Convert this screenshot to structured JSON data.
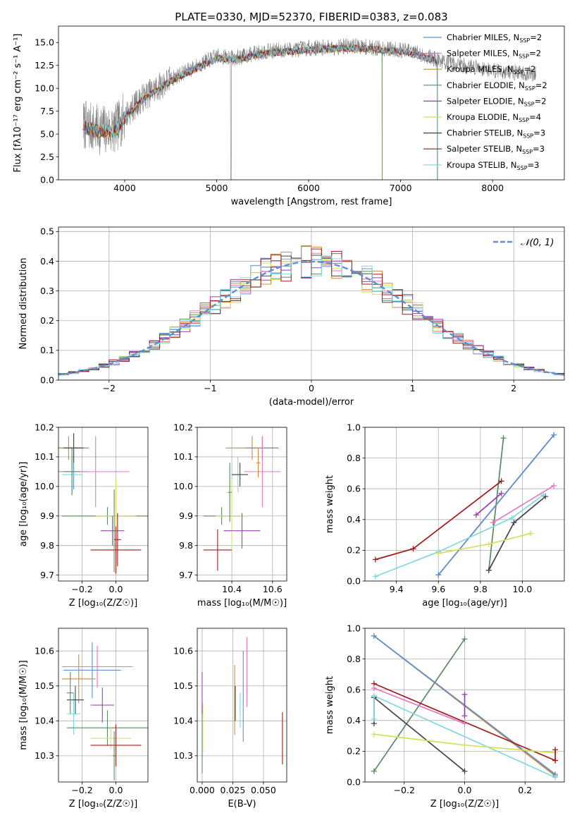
{
  "chart_data": [
    {
      "id": "spectrum",
      "type": "line",
      "title": "PLATE=0330, MJD=52370, FIBERID=0383, z=0.083",
      "xlabel": "wavelength [Angstrom, rest frame]",
      "ylabel": "Flux [fλ10⁻¹⁷ erg cm⁻² s⁻¹ A⁻¹]",
      "xlim": [
        3280,
        8780
      ],
      "ylim": [
        0,
        16.8
      ],
      "xticks": [
        4000,
        5000,
        6000,
        7000,
        8000
      ],
      "yticks": [
        0.0,
        2.5,
        5.0,
        7.5,
        10.0,
        12.5,
        15.0
      ],
      "grid": false,
      "legend_position": "right",
      "data_color": "#7f7f7f",
      "data_range": [
        3550,
        8470
      ],
      "legend": [
        {
          "label": "Chabrier MILES, N",
          "sub": "SSP",
          "suffix": "=2",
          "color": "#5b8fd6"
        },
        {
          "label": "Salpeter MILES, N",
          "sub": "SSP",
          "suffix": "=2",
          "color": "#e377c2"
        },
        {
          "label": "Kroupa MILES, N",
          "sub": "SSP",
          "suffix": "=2",
          "color": "#d08a3a"
        },
        {
          "label": "Chabrier ELODIE, N",
          "sub": "SSP",
          "suffix": "=2",
          "color": "#5a8a5f"
        },
        {
          "label": "Salpeter ELODIE, N",
          "sub": "SSP",
          "suffix": "=2",
          "color": "#9b3fb0"
        },
        {
          "label": "Kroupa ELODIE, N",
          "sub": "SSP",
          "suffix": "=4",
          "color": "#d4e157"
        },
        {
          "label": "Chabrier STELIB, N",
          "sub": "SSP",
          "suffix": "=3",
          "color": "#444444"
        },
        {
          "label": "Salpeter STELIB, N",
          "sub": "SSP",
          "suffix": "=3",
          "color": "#a01a1a"
        },
        {
          "label": "Kroupa STELIB, N",
          "sub": "SSP",
          "suffix": "=3",
          "color": "#80d8df"
        }
      ],
      "continuum": [
        [
          3550,
          6.0
        ],
        [
          3700,
          5.5
        ],
        [
          3900,
          5.5
        ],
        [
          4000,
          7.0
        ],
        [
          4200,
          9.0
        ],
        [
          4500,
          11.0
        ],
        [
          4800,
          12.5
        ],
        [
          5000,
          13.5
        ],
        [
          5200,
          13.3
        ],
        [
          5500,
          14.0
        ],
        [
          6000,
          14.4
        ],
        [
          6500,
          14.6
        ],
        [
          7000,
          14.2
        ],
        [
          7200,
          13.8
        ],
        [
          7500,
          12.8
        ],
        [
          8000,
          12.0
        ],
        [
          8470,
          11.5
        ]
      ],
      "model_range": [
        3500,
        7400
      ],
      "model_drops": [
        [
          6800,
          7400
        ],
        [
          7400,
          7400
        ]
      ]
    },
    {
      "id": "residuals",
      "type": "histogram",
      "xlabel": "(data-model)/error",
      "ylabel": "Normed distribution",
      "xlim": [
        -2.5,
        2.5
      ],
      "ylim": [
        0,
        0.515
      ],
      "xticks": [
        -2,
        -1,
        0,
        1,
        2
      ],
      "yticks": [
        0.0,
        0.1,
        0.2,
        0.3,
        0.4,
        0.5
      ],
      "grid": true,
      "legend_position": "top-right",
      "legend": [
        {
          "label": "𝒩(0, 1)",
          "color": "#5b8fd6",
          "dashed": true
        }
      ],
      "bins": {
        "start": -2.6,
        "width": 0.1
      }
    },
    {
      "id": "z-age",
      "type": "errorbar",
      "xlabel": "Z [log₁₀(Z/Z☉)]",
      "ylabel": "age  [log₁₀(age/yr)]",
      "xlim": [
        -0.34,
        0.19
      ],
      "ylim": [
        9.68,
        10.2
      ],
      "xticks": [
        -0.2,
        0.0
      ],
      "yticks": [
        9.7,
        9.8,
        9.9,
        10.0,
        10.1,
        10.2
      ],
      "grid": true,
      "points": [
        {
          "x": -0.25,
          "y": 10.05,
          "xerr": 0.09,
          "yerr": 0.06,
          "color": "#5b8fd6"
        },
        {
          "x": -0.25,
          "y": 10.13,
          "xerr": 0.09,
          "yerr": 0.04,
          "color": "#5b8fd6"
        },
        {
          "x": -0.28,
          "y": 10.13,
          "xerr": 0.06,
          "yerr": 0.04,
          "color": "#d08a3a"
        },
        {
          "x": -0.12,
          "y": 10.05,
          "xerr": 0.2,
          "yerr": 0.12,
          "color": "#e377c2"
        },
        {
          "x": -0.26,
          "y": 10.04,
          "xerr": 0.06,
          "yerr": 0.06,
          "color": "#80d8df"
        },
        {
          "x": -0.26,
          "y": 10.05,
          "xerr": 0.05,
          "yerr": 0.08,
          "color": "#5a8a5f"
        },
        {
          "x": -0.25,
          "y": 10.13,
          "xerr": 0.06,
          "yerr": 0.05,
          "color": "#444444"
        },
        {
          "x": -0.05,
          "y": 9.9,
          "xerr": 0.27,
          "yerr": 0.03,
          "color": "#5a8a5f"
        },
        {
          "x": 0.0,
          "y": 9.9,
          "xerr": 0.12,
          "yerr": 0.12,
          "color": "#d4e157"
        },
        {
          "x": -0.02,
          "y": 9.85,
          "xerr": 0.07,
          "yerr": 0.05,
          "color": "#9b3fb0"
        },
        {
          "x": 0.0,
          "y": 9.785,
          "xerr": 0.15,
          "yerr": 0.08,
          "color": "#a01a1a"
        },
        {
          "x": 0.01,
          "y": 9.82,
          "xerr": 0.02,
          "yerr": 0.09,
          "color": "#a01a1a"
        },
        {
          "x": -0.01,
          "y": 9.85,
          "xerr": 0.02,
          "yerr": 0.14,
          "color": "#5a8a5f"
        }
      ]
    },
    {
      "id": "mass-age",
      "type": "errorbar",
      "xlabel": "mass [log₁₀(M/M☉)]",
      "xlim": [
        10.23,
        10.67
      ],
      "ylim": [
        9.68,
        10.2
      ],
      "xticks": [
        10.4,
        10.6
      ],
      "yticks": [
        9.7,
        9.8,
        9.9,
        10.0,
        10.1,
        10.2
      ],
      "grid": true,
      "points": [
        {
          "x": 10.5,
          "y": 10.13,
          "xerr": 0.13,
          "yerr": 0.04,
          "color": "#d08a3a"
        },
        {
          "x": 10.55,
          "y": 10.13,
          "xerr": 0.08,
          "yerr": 0.04,
          "color": "#5b8fd6"
        },
        {
          "x": 10.55,
          "y": 10.05,
          "xerr": 0.09,
          "yerr": 0.12,
          "color": "#e377c2"
        },
        {
          "x": 10.43,
          "y": 10.04,
          "xerr": 0.03,
          "yerr": 0.06,
          "color": "#80d8df"
        },
        {
          "x": 10.44,
          "y": 10.04,
          "xerr": 0.04,
          "yerr": 0.04,
          "color": "#444444"
        },
        {
          "x": 10.35,
          "y": 9.9,
          "xerr": 0.09,
          "yerr": 0.03,
          "color": "#5a8a5f"
        },
        {
          "x": 10.4,
          "y": 9.9,
          "xerr": 0.08,
          "yerr": 0.12,
          "color": "#d4e157"
        },
        {
          "x": 10.45,
          "y": 9.85,
          "xerr": 0.09,
          "yerr": 0.06,
          "color": "#9b3fb0"
        },
        {
          "x": 10.33,
          "y": 9.785,
          "xerr": 0.07,
          "yerr": 0.07,
          "color": "#a01a1a"
        },
        {
          "x": 10.39,
          "y": 9.98,
          "xerr": 0.01,
          "yerr": 0.1,
          "color": "#5a8a5f"
        },
        {
          "x": 10.53,
          "y": 10.08,
          "xerr": 0.01,
          "yerr": 0.05,
          "color": "#d08a3a"
        }
      ]
    },
    {
      "id": "age-weight",
      "type": "line",
      "xlabel": "age  [log₁₀(age/yr)]",
      "ylabel": "mass weight",
      "xlim": [
        9.25,
        10.2
      ],
      "ylim": [
        0,
        1
      ],
      "xticks": [
        9.4,
        9.6,
        9.8,
        10.0
      ],
      "yticks": [
        0.0,
        0.2,
        0.4,
        0.6,
        0.8,
        1.0
      ],
      "grid": true,
      "series": [
        {
          "color": "#5a8a5f",
          "points": [
            [
              9.84,
              0.07
            ],
            [
              9.91,
              0.93
            ]
          ]
        },
        {
          "color": "#444444",
          "points": [
            [
              9.84,
              0.07
            ],
            [
              9.96,
              0.38
            ],
            [
              10.11,
              0.55
            ]
          ]
        },
        {
          "color": "#d08a3a",
          "points": [
            [
              9.6,
              0.04
            ],
            [
              10.15,
              0.95
            ]
          ]
        },
        {
          "color": "#5b8fd6",
          "points": [
            [
              9.6,
              0.04
            ],
            [
              10.15,
              0.95
            ]
          ]
        },
        {
          "color": "#a01a1a",
          "points": [
            [
              9.3,
              0.14
            ],
            [
              9.48,
              0.21
            ],
            [
              9.9,
              0.65
            ]
          ]
        },
        {
          "color": "#9b3fb0",
          "points": [
            [
              9.78,
              0.43
            ],
            [
              9.9,
              0.57
            ]
          ]
        },
        {
          "color": "#e377c2",
          "points": [
            [
              9.86,
              0.38
            ],
            [
              10.15,
              0.62
            ]
          ]
        },
        {
          "color": "#80d8df",
          "points": [
            [
              9.3,
              0.03
            ],
            [
              9.6,
              0.19
            ],
            [
              9.95,
              0.41
            ],
            [
              10.1,
              0.56
            ]
          ]
        },
        {
          "color": "#d4e157",
          "points": [
            [
              9.6,
              0.18
            ],
            [
              9.84,
              0.24
            ],
            [
              10.04,
              0.31
            ]
          ]
        }
      ]
    },
    {
      "id": "z-mass",
      "type": "errorbar",
      "xlabel": "Z [log₁₀(Z/Z☉)]",
      "ylabel": "mass [log₁₀(M/M☉)]",
      "xlim": [
        -0.34,
        0.19
      ],
      "ylim": [
        10.225,
        10.665
      ],
      "xticks": [
        -0.2,
        0.0
      ],
      "yticks": [
        10.3,
        10.4,
        10.5,
        10.6
      ],
      "grid": true,
      "points": [
        {
          "x": -0.11,
          "y": 10.555,
          "xerr": 0.21,
          "yerr": 0.06,
          "color": "#e377c2"
        },
        {
          "x": -0.14,
          "y": 10.545,
          "xerr": 0.17,
          "yerr": 0.08,
          "color": "#5b8fd6"
        },
        {
          "x": -0.22,
          "y": 10.52,
          "xerr": 0.1,
          "yerr": 0.07,
          "color": "#d08a3a"
        },
        {
          "x": -0.25,
          "y": 10.42,
          "xerr": 0.04,
          "yerr": 0.06,
          "color": "#80d8df"
        },
        {
          "x": -0.24,
          "y": 10.46,
          "xerr": 0.05,
          "yerr": 0.04,
          "color": "#444444"
        },
        {
          "x": -0.27,
          "y": 10.48,
          "xerr": 0.02,
          "yerr": 0.06,
          "color": "#5a8a5f"
        },
        {
          "x": -0.08,
          "y": 10.445,
          "xerr": 0.07,
          "yerr": 0.05,
          "color": "#9b3fb0"
        },
        {
          "x": -0.05,
          "y": 10.38,
          "xerr": 0.24,
          "yerr": 0.05,
          "color": "#5a8a5f"
        },
        {
          "x": -0.03,
          "y": 10.35,
          "xerr": 0.12,
          "yerr": 0.03,
          "color": "#d4e157"
        },
        {
          "x": 0.0,
          "y": 10.33,
          "xerr": 0.15,
          "yerr": 0.06,
          "color": "#a01a1a"
        },
        {
          "x": -0.01,
          "y": 10.3,
          "xerr": 0.01,
          "yerr": 0.07,
          "color": "#5a8a5f"
        }
      ]
    },
    {
      "id": "ebv-mass",
      "type": "errorbar",
      "xlabel": "E(B-V)",
      "xlim": [
        -0.004,
        0.069
      ],
      "ylim": [
        10.225,
        10.665
      ],
      "xticks": [
        0.0,
        0.025,
        0.05
      ],
      "yticks": [
        10.3,
        10.4,
        10.5,
        10.6
      ],
      "grid": true,
      "points": [
        {
          "x": 0.0,
          "y": 10.35,
          "xerr": 0.0,
          "yerr": 0.1,
          "color": "#5a8a5f"
        },
        {
          "x": 0.0005,
          "y": 10.38,
          "xerr": 0.0,
          "yerr": 0.07,
          "color": "#d4e157"
        },
        {
          "x": 0.0,
          "y": 10.48,
          "xerr": 0.0,
          "yerr": 0.06,
          "color": "#9b3fb0"
        },
        {
          "x": 0.0265,
          "y": 10.46,
          "xerr": 0.0,
          "yerr": 0.1,
          "color": "#d08a3a"
        },
        {
          "x": 0.027,
          "y": 10.45,
          "xerr": 0.0,
          "yerr": 0.05,
          "color": "#444444"
        },
        {
          "x": 0.031,
          "y": 10.43,
          "xerr": 0.0,
          "yerr": 0.05,
          "color": "#80d8df"
        },
        {
          "x": 0.0335,
          "y": 10.47,
          "xerr": 0.0,
          "yerr": 0.13,
          "color": "#5b8fd6"
        },
        {
          "x": 0.0365,
          "y": 10.54,
          "xerr": 0.0,
          "yerr": 0.1,
          "color": "#e377c2"
        },
        {
          "x": 0.0655,
          "y": 10.35,
          "xerr": 0.0,
          "yerr": 0.075,
          "color": "#a01a1a"
        }
      ]
    },
    {
      "id": "z-weight",
      "type": "line",
      "xlabel": "Z [log₁₀(Z/Z☉)]",
      "ylabel": "mass weight",
      "xlim": [
        -0.33,
        0.33
      ],
      "ylim": [
        0,
        1
      ],
      "xticks": [
        -0.2,
        0.0,
        0.2
      ],
      "yticks": [
        0.0,
        0.2,
        0.4,
        0.6,
        0.8,
        1.0
      ],
      "grid": true,
      "series": [
        {
          "color": "#5a8a5f",
          "points": [
            [
              -0.3,
              0.07
            ],
            [
              0.0,
              0.93
            ]
          ]
        },
        {
          "color": "#444444",
          "points": [
            [
              -0.3,
              0.55
            ],
            [
              0.0,
              0.07
            ]
          ]
        },
        {
          "color": "#d08a3a",
          "points": [
            [
              -0.3,
              0.95
            ],
            [
              0.3,
              0.04
            ]
          ]
        },
        {
          "color": "#5b8fd6",
          "points": [
            [
              -0.3,
              0.95
            ],
            [
              0.3,
              0.05
            ]
          ]
        },
        {
          "color": "#a01a1a",
          "points": [
            [
              -0.3,
              0.64
            ],
            [
              0.3,
              0.14
            ]
          ]
        },
        {
          "color": "#9b3fb0",
          "points": [
            [
              0.0,
              0.43
            ],
            [
              0.0,
              0.57
            ]
          ]
        },
        {
          "color": "#e377c2",
          "points": [
            [
              -0.3,
              0.61
            ],
            [
              0.0,
              0.38
            ]
          ]
        },
        {
          "color": "#80d8df",
          "points": [
            [
              -0.3,
              0.56
            ],
            [
              0.3,
              0.03
            ]
          ]
        },
        {
          "color": "#d4e157",
          "points": [
            [
              -0.3,
              0.31
            ],
            [
              0.0,
              0.24
            ],
            [
              0.3,
              0.19
            ]
          ]
        },
        {
          "color": "#a01a1a",
          "points": [
            [
              0.3,
              0.14
            ],
            [
              0.3,
              0.21
            ]
          ]
        },
        {
          "color": "#444444",
          "points": [
            [
              -0.3,
              0.38
            ],
            [
              -0.3,
              0.55
            ]
          ]
        },
        {
          "color": "#80d8df",
          "points": [
            [
              -0.3,
              0.41
            ],
            [
              -0.3,
              0.56
            ]
          ]
        }
      ]
    }
  ]
}
